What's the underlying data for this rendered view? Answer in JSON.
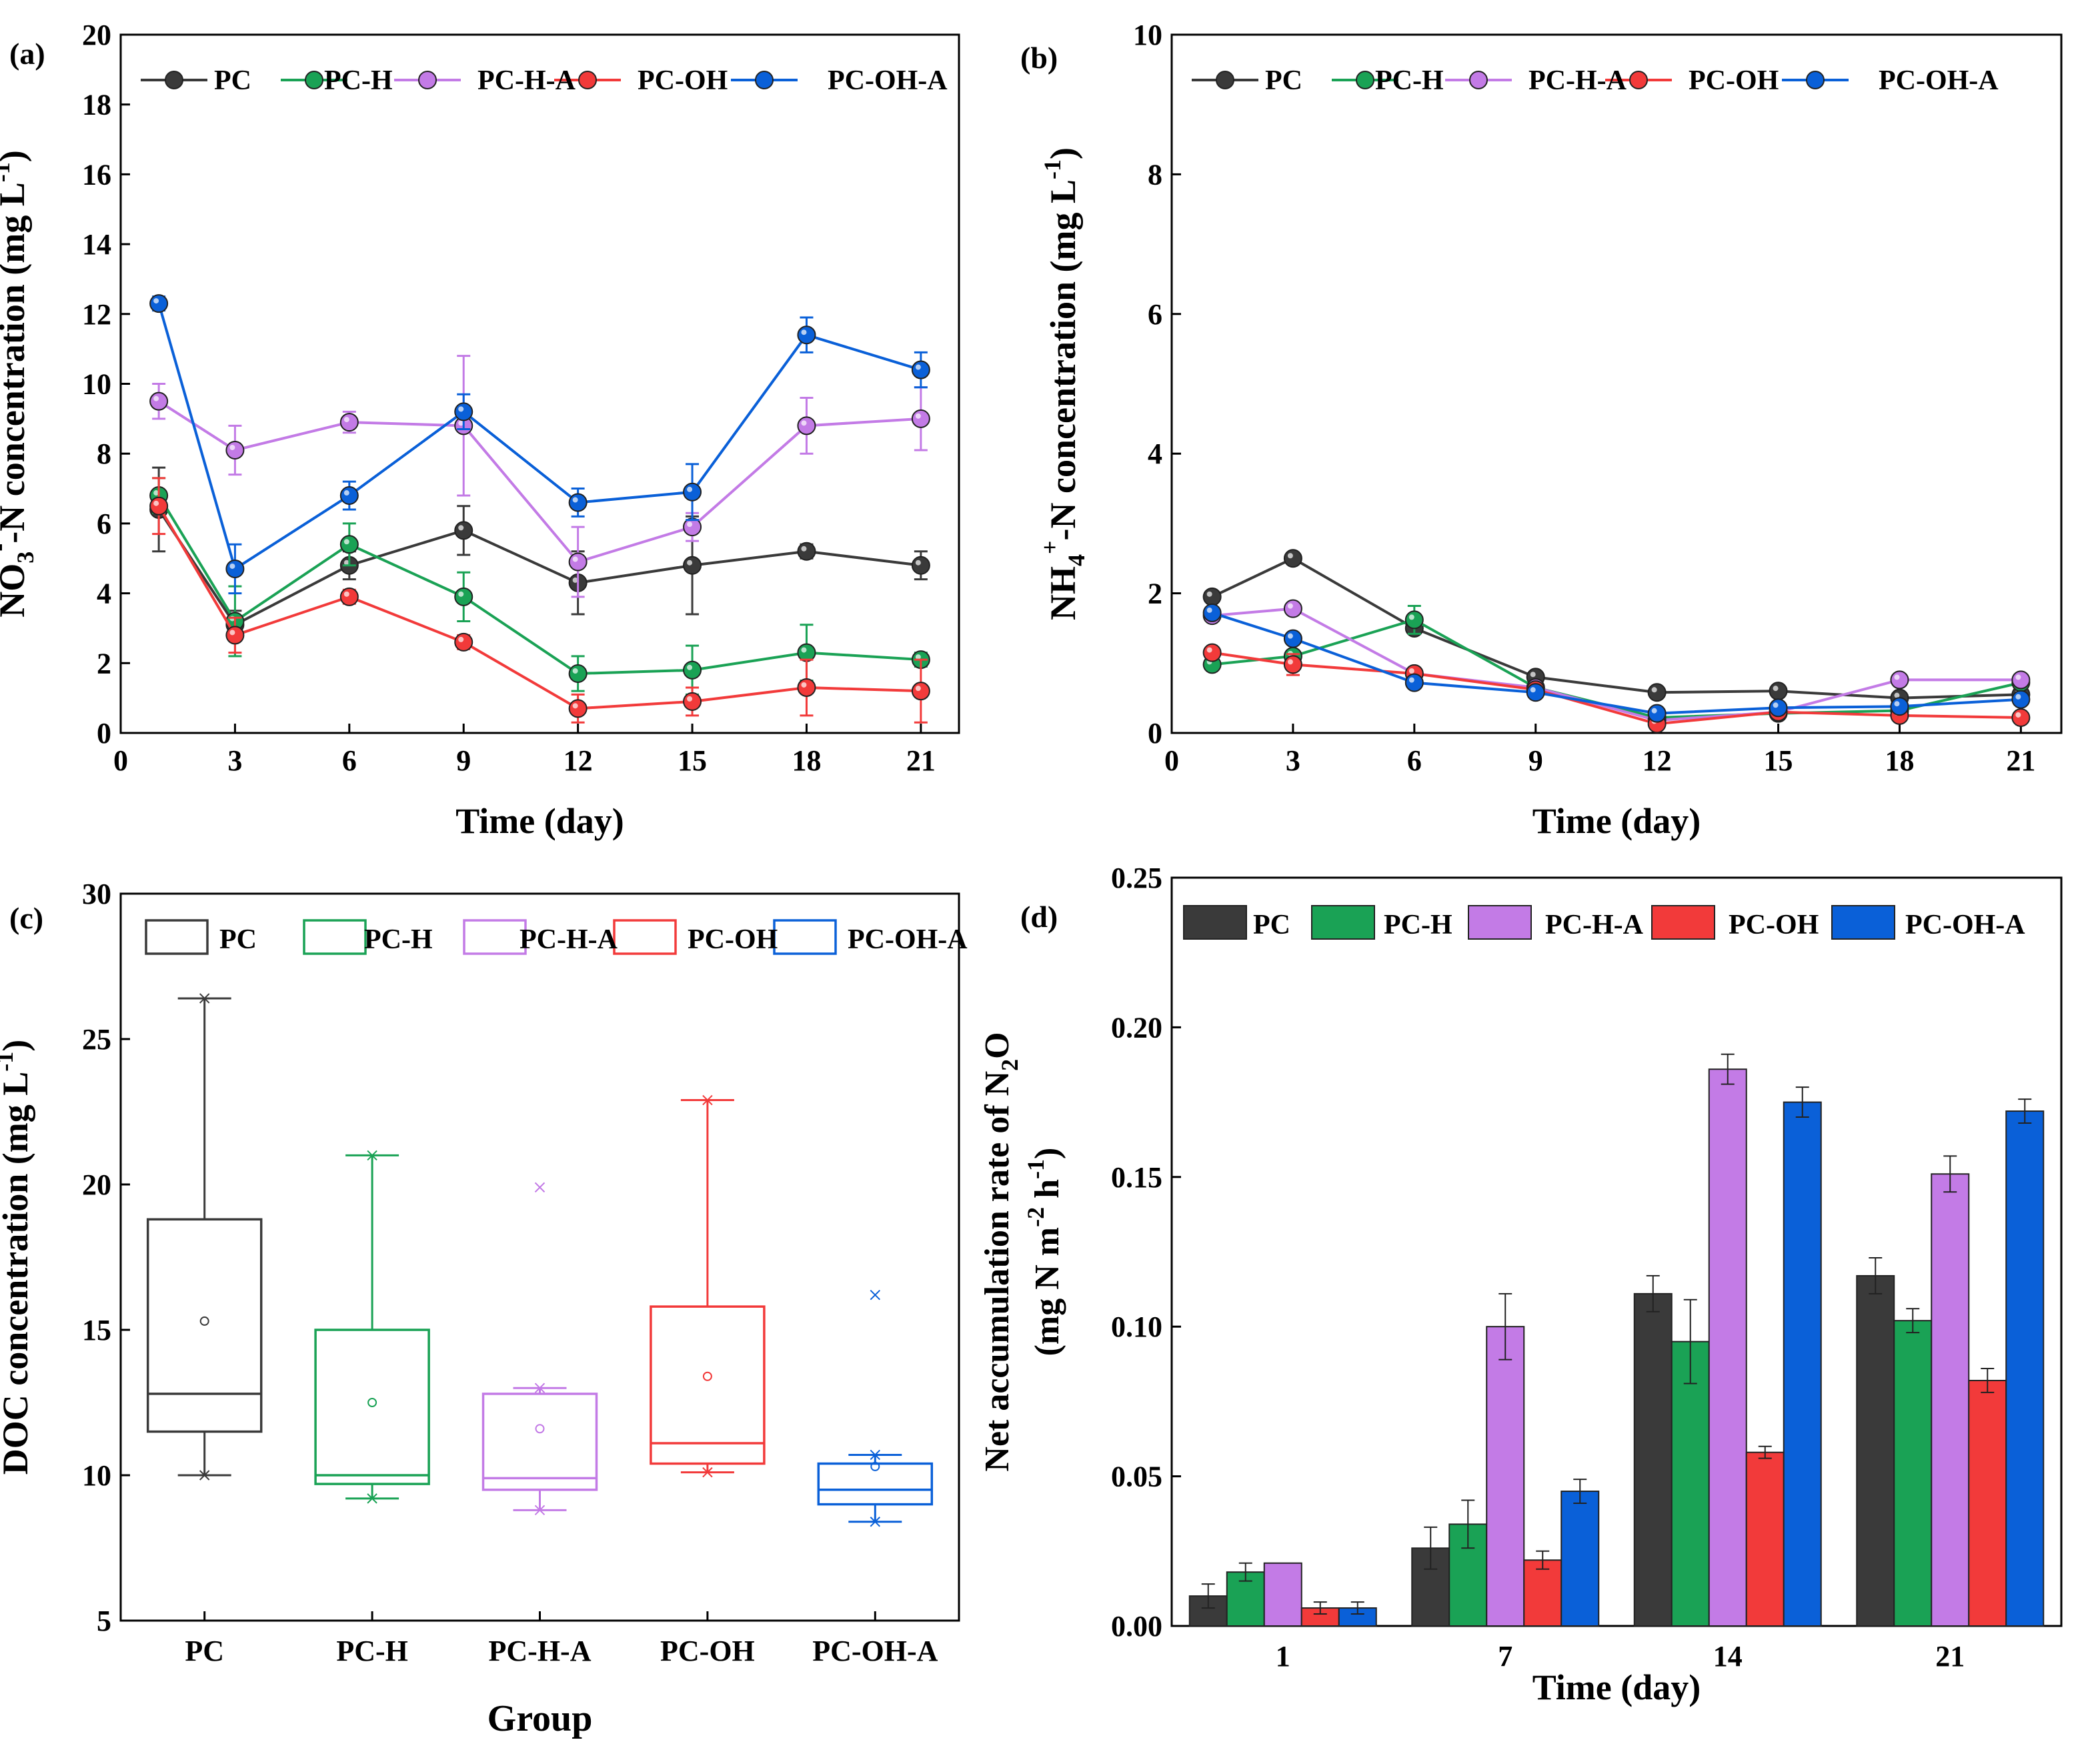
{
  "colors": {
    "PC": "#3a3a3a",
    "PC-H": "#1aa255",
    "PC-H-A": "#c37be6",
    "PC-OH": "#f23a3a",
    "PC-OH-A": "#0a60d8"
  },
  "legend_labels": [
    "PC",
    "PC-H",
    "PC-H-A",
    "PC-OH",
    "PC-OH-A"
  ],
  "chart_data": [
    {
      "panel": "(a)",
      "type": "line",
      "title": "",
      "xlabel": "Time (day)",
      "ylabel": {
        "pre": "NO",
        "sub": "3",
        "sup": "-",
        "post": "-N concentration (mg L",
        "unit_sup": "-1",
        "end": ")"
      },
      "xlim": [
        0,
        22
      ],
      "ylim": [
        0,
        20
      ],
      "xticks": [
        0,
        3,
        6,
        9,
        12,
        15,
        18,
        21
      ],
      "yticks": [
        0,
        2,
        4,
        6,
        8,
        10,
        12,
        14,
        16,
        18,
        20
      ],
      "x": [
        1,
        3,
        6,
        9,
        12,
        15,
        18,
        21
      ],
      "series": [
        {
          "name": "PC",
          "values": [
            6.4,
            3.1,
            4.8,
            5.8,
            4.3,
            4.8,
            5.2,
            4.8
          ],
          "errors": [
            1.2,
            0.4,
            0.4,
            0.7,
            0.9,
            1.4,
            0.2,
            0.4
          ]
        },
        {
          "name": "PC-H",
          "values": [
            6.8,
            3.2,
            5.4,
            3.9,
            1.7,
            1.8,
            2.3,
            2.1
          ],
          "errors": [
            0.5,
            1.0,
            0.6,
            0.7,
            0.5,
            0.7,
            0.8,
            0.2
          ]
        },
        {
          "name": "PC-H-A",
          "values": [
            9.5,
            8.1,
            8.9,
            8.8,
            4.9,
            5.9,
            8.8,
            9.0
          ],
          "errors": [
            0.5,
            0.7,
            0.3,
            2.0,
            1.0,
            0.4,
            0.8,
            0.9
          ]
        },
        {
          "name": "PC-OH",
          "values": [
            6.5,
            2.8,
            3.9,
            2.6,
            0.7,
            0.9,
            1.3,
            1.2
          ],
          "errors": [
            0.8,
            0.5,
            0.2,
            0.2,
            0.4,
            0.4,
            0.8,
            0.9
          ]
        },
        {
          "name": "PC-OH-A",
          "values": [
            12.3,
            4.7,
            6.8,
            9.2,
            6.6,
            6.9,
            11.4,
            10.4
          ],
          "errors": [
            0.2,
            0.7,
            0.4,
            0.5,
            0.4,
            0.8,
            0.5,
            0.5
          ]
        }
      ],
      "legend": "top"
    },
    {
      "panel": "(b)",
      "type": "line",
      "title": "",
      "xlabel": "Time (day)",
      "ylabel": {
        "pre": "NH",
        "sub": "4",
        "sup": "+",
        "post": "-N concentration (mg L",
        "unit_sup": "-1",
        "end": ")"
      },
      "xlim": [
        0,
        22
      ],
      "ylim": [
        0,
        10
      ],
      "xticks": [
        0,
        3,
        6,
        9,
        12,
        15,
        18,
        21
      ],
      "yticks": [
        0,
        2,
        4,
        6,
        8,
        10
      ],
      "x": [
        1,
        3,
        6,
        9,
        12,
        15,
        18,
        21
      ],
      "series": [
        {
          "name": "PC",
          "values": [
            1.95,
            2.5,
            1.5,
            0.8,
            0.58,
            0.6,
            0.5,
            0.55
          ],
          "errors": [
            0.05,
            0.08,
            0.08,
            0.05,
            0.04,
            0.04,
            0.04,
            0.04
          ]
        },
        {
          "name": "PC-H",
          "values": [
            0.98,
            1.1,
            1.62,
            0.65,
            0.22,
            0.28,
            0.32,
            0.72
          ],
          "errors": [
            0.05,
            0.05,
            0.2,
            0.05,
            0.04,
            0.04,
            0.04,
            0.04
          ]
        },
        {
          "name": "PC-H-A",
          "values": [
            1.68,
            1.78,
            0.85,
            0.65,
            0.18,
            0.3,
            0.76,
            0.76
          ],
          "errors": [
            0.05,
            0.06,
            0.05,
            0.05,
            0.04,
            0.04,
            0.05,
            0.04
          ]
        },
        {
          "name": "PC-OH",
          "values": [
            1.15,
            0.98,
            0.85,
            0.62,
            0.13,
            0.3,
            0.25,
            0.22
          ],
          "errors": [
            0.05,
            0.15,
            0.05,
            0.05,
            0.04,
            0.04,
            0.04,
            0.04
          ]
        },
        {
          "name": "PC-OH-A",
          "values": [
            1.72,
            1.35,
            0.72,
            0.58,
            0.28,
            0.36,
            0.38,
            0.48
          ],
          "errors": [
            0.05,
            0.05,
            0.05,
            0.05,
            0.04,
            0.04,
            0.04,
            0.04
          ]
        }
      ],
      "legend": "top"
    },
    {
      "panel": "(c)",
      "type": "box",
      "title": "",
      "xlabel": "Group",
      "ylabel": {
        "pre": "DOC concentration (mg L",
        "unit_sup": "-1",
        "end": ")"
      },
      "ylim": [
        5,
        30
      ],
      "yticks": [
        5,
        10,
        15,
        20,
        25,
        30
      ],
      "categories": [
        "PC",
        "PC-H",
        "PC-H-A",
        "PC-OH",
        "PC-OH-A"
      ],
      "boxes": [
        {
          "name": "PC",
          "min": 10.0,
          "q1": 11.5,
          "median": 12.8,
          "q3": 18.8,
          "max": 26.4,
          "mean": 15.3,
          "outliers": []
        },
        {
          "name": "PC-H",
          "min": 9.2,
          "q1": 9.7,
          "median": 10.0,
          "q3": 15.0,
          "max": 21.0,
          "mean": 12.5,
          "outliers": []
        },
        {
          "name": "PC-H-A",
          "min": 8.8,
          "q1": 9.5,
          "median": 9.9,
          "q3": 12.8,
          "max": 13.0,
          "mean": 11.6,
          "outliers": [
            19.9
          ]
        },
        {
          "name": "PC-OH",
          "min": 10.1,
          "q1": 10.4,
          "median": 11.1,
          "q3": 15.8,
          "max": 22.9,
          "mean": 13.4,
          "outliers": []
        },
        {
          "name": "PC-OH-A",
          "min": 8.4,
          "q1": 9.0,
          "median": 9.5,
          "q3": 10.4,
          "max": 10.7,
          "mean": 10.3,
          "outliers": [
            16.2
          ]
        }
      ],
      "legend": "top"
    },
    {
      "panel": "(d)",
      "type": "bar",
      "title": "",
      "xlabel": "Time (day)",
      "ylabel_line1": {
        "pre": "Net accumulation rate of  N",
        "sub": "2",
        "post": "O"
      },
      "ylabel_line2": {
        "pre": "(mg N m",
        "sup1": "-2",
        "mid": " h",
        "sup2": "-1",
        "end": ")"
      },
      "ylim": [
        0,
        0.25
      ],
      "yticks": [
        "0.00",
        "0.05",
        "0.10",
        "0.15",
        "0.20",
        "0.25"
      ],
      "categories": [
        "1",
        "7",
        "14",
        "21"
      ],
      "series": [
        {
          "name": "PC",
          "values": [
            0.01,
            0.026,
            0.111,
            0.117
          ],
          "errors": [
            0.004,
            0.007,
            0.006,
            0.006
          ]
        },
        {
          "name": "PC-H",
          "values": [
            0.018,
            0.034,
            0.095,
            0.102
          ],
          "errors": [
            0.003,
            0.008,
            0.014,
            0.004
          ]
        },
        {
          "name": "PC-H-A",
          "values": [
            0.021,
            0.1,
            0.186,
            0.151
          ],
          "errors": [
            0.0,
            0.011,
            0.005,
            0.006
          ]
        },
        {
          "name": "PC-OH",
          "values": [
            0.006,
            0.022,
            0.058,
            0.082
          ],
          "errors": [
            0.002,
            0.003,
            0.002,
            0.004
          ]
        },
        {
          "name": "PC-OH-A",
          "values": [
            0.006,
            0.045,
            0.175,
            0.172
          ],
          "errors": [
            0.002,
            0.004,
            0.005,
            0.004
          ]
        }
      ],
      "legend": "top"
    }
  ]
}
